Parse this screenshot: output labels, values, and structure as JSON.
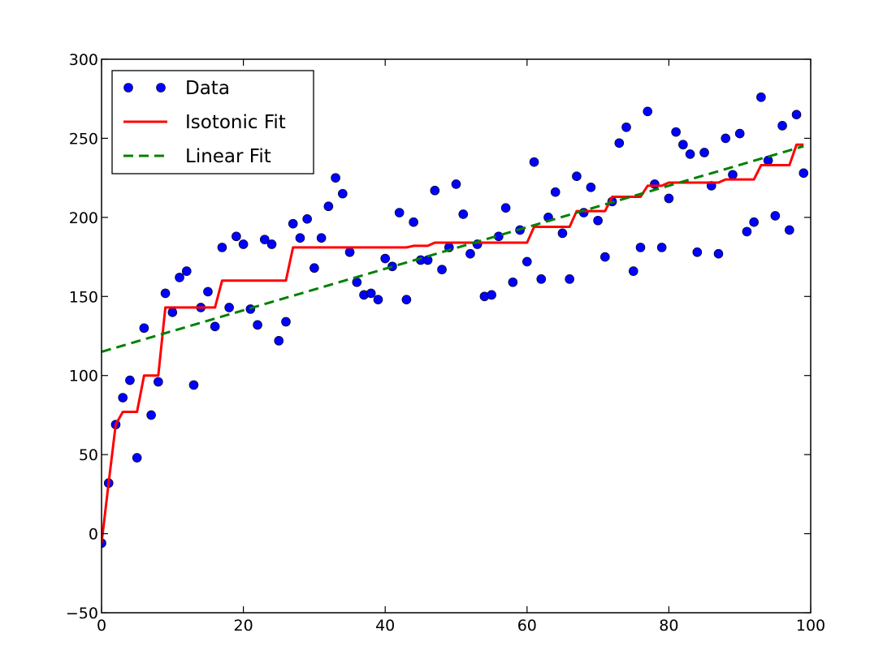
{
  "chart_data": {
    "type": "scatter",
    "title": "",
    "xlabel": "",
    "ylabel": "",
    "xlim": [
      0,
      100
    ],
    "ylim": [
      -50,
      300
    ],
    "x_ticks": [
      "0",
      "20",
      "40",
      "60",
      "80",
      "100"
    ],
    "y_ticks": [
      "−50",
      "0",
      "50",
      "100",
      "150",
      "200",
      "250",
      "300"
    ],
    "grid": false,
    "legend": {
      "position": "top-left",
      "entries": [
        {
          "label": "Data",
          "style": "markers",
          "color": "#0000ff"
        },
        {
          "label": "Isotonic Fit",
          "style": "solid-line",
          "color": "#ff0000"
        },
        {
          "label": "Linear Fit",
          "style": "dashed-line",
          "color": "#008000"
        }
      ]
    },
    "series": [
      {
        "name": "Data",
        "kind": "scatter",
        "color": "#0000ff",
        "points": [
          [
            0,
            -6
          ],
          [
            1,
            32
          ],
          [
            2,
            69
          ],
          [
            3,
            86
          ],
          [
            4,
            97
          ],
          [
            5,
            48
          ],
          [
            6,
            130
          ],
          [
            7,
            75
          ],
          [
            8,
            96
          ],
          [
            9,
            152
          ],
          [
            10,
            140
          ],
          [
            11,
            162
          ],
          [
            12,
            166
          ],
          [
            13,
            94
          ],
          [
            14,
            143
          ],
          [
            15,
            153
          ],
          [
            16,
            131
          ],
          [
            17,
            181
          ],
          [
            18,
            143
          ],
          [
            19,
            188
          ],
          [
            20,
            183
          ],
          [
            21,
            142
          ],
          [
            22,
            132
          ],
          [
            23,
            186
          ],
          [
            24,
            183
          ],
          [
            25,
            122
          ],
          [
            26,
            134
          ],
          [
            27,
            196
          ],
          [
            28,
            187
          ],
          [
            29,
            199
          ],
          [
            30,
            168
          ],
          [
            31,
            187
          ],
          [
            32,
            207
          ],
          [
            33,
            225
          ],
          [
            34,
            215
          ],
          [
            35,
            178
          ],
          [
            36,
            159
          ],
          [
            37,
            151
          ],
          [
            38,
            152
          ],
          [
            39,
            148
          ],
          [
            40,
            174
          ],
          [
            41,
            169
          ],
          [
            42,
            203
          ],
          [
            43,
            148
          ],
          [
            44,
            197
          ],
          [
            45,
            173
          ],
          [
            46,
            173
          ],
          [
            47,
            217
          ],
          [
            48,
            167
          ],
          [
            49,
            181
          ],
          [
            50,
            221
          ],
          [
            51,
            202
          ],
          [
            52,
            177
          ],
          [
            53,
            183
          ],
          [
            54,
            150
          ],
          [
            55,
            151
          ],
          [
            56,
            188
          ],
          [
            57,
            206
          ],
          [
            58,
            159
          ],
          [
            59,
            192
          ],
          [
            60,
            172
          ],
          [
            61,
            235
          ],
          [
            62,
            161
          ],
          [
            63,
            200
          ],
          [
            64,
            216
          ],
          [
            65,
            190
          ],
          [
            66,
            161
          ],
          [
            67,
            226
          ],
          [
            68,
            203
          ],
          [
            69,
            219
          ],
          [
            70,
            198
          ],
          [
            71,
            175
          ],
          [
            72,
            210
          ],
          [
            73,
            247
          ],
          [
            74,
            257
          ],
          [
            75,
            166
          ],
          [
            76,
            181
          ],
          [
            77,
            267
          ],
          [
            78,
            221
          ],
          [
            79,
            181
          ],
          [
            80,
            212
          ],
          [
            81,
            254
          ],
          [
            82,
            246
          ],
          [
            83,
            240
          ],
          [
            84,
            178
          ],
          [
            85,
            241
          ],
          [
            86,
            220
          ],
          [
            87,
            177
          ],
          [
            88,
            250
          ],
          [
            89,
            227
          ],
          [
            90,
            253
          ],
          [
            91,
            191
          ],
          [
            92,
            197
          ],
          [
            93,
            276
          ],
          [
            94,
            236
          ],
          [
            95,
            201
          ],
          [
            96,
            258
          ],
          [
            97,
            192
          ],
          [
            98,
            265
          ],
          [
            99,
            228
          ]
        ]
      },
      {
        "name": "Isotonic Fit",
        "kind": "line",
        "color": "#ff0000",
        "points": [
          [
            0,
            -6
          ],
          [
            1,
            32
          ],
          [
            2,
            69
          ],
          [
            3,
            77
          ],
          [
            4,
            77
          ],
          [
            5,
            77
          ],
          [
            6,
            100
          ],
          [
            7,
            100
          ],
          [
            8,
            100
          ],
          [
            9,
            143
          ],
          [
            10,
            143
          ],
          [
            11,
            143
          ],
          [
            12,
            143
          ],
          [
            13,
            143
          ],
          [
            14,
            143
          ],
          [
            15,
            143
          ],
          [
            16,
            143
          ],
          [
            17,
            160
          ],
          [
            18,
            160
          ],
          [
            19,
            160
          ],
          [
            20,
            160
          ],
          [
            21,
            160
          ],
          [
            22,
            160
          ],
          [
            23,
            160
          ],
          [
            24,
            160
          ],
          [
            25,
            160
          ],
          [
            26,
            160
          ],
          [
            27,
            181
          ],
          [
            28,
            181
          ],
          [
            29,
            181
          ],
          [
            30,
            181
          ],
          [
            31,
            181
          ],
          [
            32,
            181
          ],
          [
            33,
            181
          ],
          [
            34,
            181
          ],
          [
            35,
            181
          ],
          [
            36,
            181
          ],
          [
            37,
            181
          ],
          [
            38,
            181
          ],
          [
            39,
            181
          ],
          [
            40,
            181
          ],
          [
            41,
            181
          ],
          [
            42,
            181
          ],
          [
            43,
            181
          ],
          [
            44,
            182
          ],
          [
            45,
            182
          ],
          [
            46,
            182
          ],
          [
            47,
            184
          ],
          [
            48,
            184
          ],
          [
            49,
            184
          ],
          [
            50,
            184
          ],
          [
            51,
            184
          ],
          [
            52,
            184
          ],
          [
            53,
            184
          ],
          [
            54,
            184
          ],
          [
            55,
            184
          ],
          [
            56,
            184
          ],
          [
            57,
            184
          ],
          [
            58,
            184
          ],
          [
            59,
            184
          ],
          [
            60,
            184
          ],
          [
            61,
            194
          ],
          [
            62,
            194
          ],
          [
            63,
            194
          ],
          [
            64,
            194
          ],
          [
            65,
            194
          ],
          [
            66,
            194
          ],
          [
            67,
            204
          ],
          [
            68,
            204
          ],
          [
            69,
            204
          ],
          [
            70,
            204
          ],
          [
            71,
            204
          ],
          [
            72,
            213
          ],
          [
            73,
            213
          ],
          [
            74,
            213
          ],
          [
            75,
            213
          ],
          [
            76,
            213
          ],
          [
            77,
            220
          ],
          [
            78,
            220
          ],
          [
            79,
            220
          ],
          [
            80,
            222
          ],
          [
            81,
            222
          ],
          [
            82,
            222
          ],
          [
            83,
            222
          ],
          [
            84,
            222
          ],
          [
            85,
            222
          ],
          [
            86,
            222
          ],
          [
            87,
            222
          ],
          [
            88,
            224
          ],
          [
            89,
            224
          ],
          [
            90,
            224
          ],
          [
            91,
            224
          ],
          [
            92,
            224
          ],
          [
            93,
            233
          ],
          [
            94,
            233
          ],
          [
            95,
            233
          ],
          [
            96,
            233
          ],
          [
            97,
            233
          ],
          [
            98,
            246
          ],
          [
            99,
            246
          ]
        ]
      },
      {
        "name": "Linear Fit",
        "kind": "line",
        "dashed": true,
        "color": "#008000",
        "points": [
          [
            0,
            115
          ],
          [
            99,
            245
          ]
        ]
      }
    ]
  }
}
